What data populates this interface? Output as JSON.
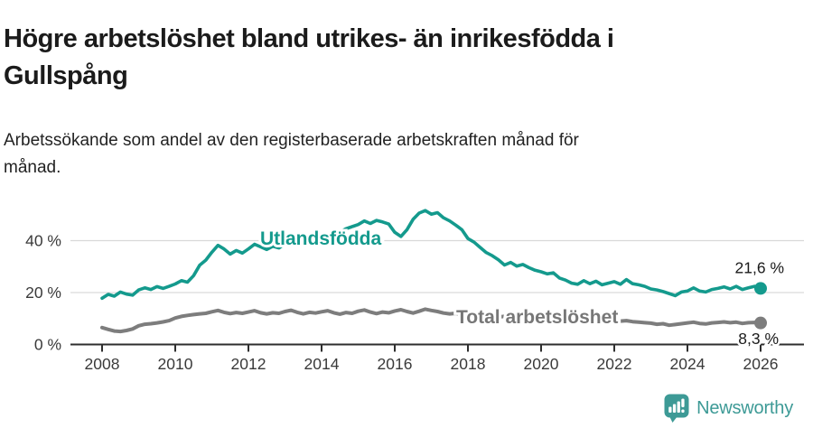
{
  "header": {
    "title_lines": [
      "Högre arbetslöshet bland utrikes- än inrikesfödda i",
      "Gullspång"
    ],
    "subtitle_lines": [
      "Arbetssökande som andel av den registerbaserade arbetskraften månad för",
      "månad."
    ]
  },
  "chart_data": {
    "type": "line",
    "title": "Högre arbetslöshet bland utrikes- än inrikesfödda i Gullspång",
    "subtitle": "Arbetssökande som andel av den registerbaserade arbetskraften månad för månad.",
    "grid": true,
    "legend_position": "inline-labels",
    "xlim": [
      2007.2,
      2027.2
    ],
    "ylim": [
      0,
      55
    ],
    "x_ticks": [
      2008,
      2010,
      2012,
      2014,
      2016,
      2018,
      2020,
      2022,
      2024,
      2026
    ],
    "y_ticks": [
      {
        "value": 0,
        "label": "0 %"
      },
      {
        "value": 20,
        "label": "20 %"
      },
      {
        "value": 40,
        "label": "40 %"
      }
    ],
    "x_start": 2008.0,
    "x_step_years": 0.166667,
    "series": [
      {
        "name": "Utlandsfödda",
        "color": "#149a8d",
        "end_label": "21,6 %",
        "end_value": 21.6,
        "values": [
          17.8,
          19.3,
          18.6,
          20.2,
          19.4,
          19.0,
          21.0,
          21.8,
          21.2,
          22.3,
          21.6,
          22.4,
          23.3,
          24.6,
          24.0,
          26.5,
          30.5,
          32.5,
          35.5,
          38.2,
          36.8,
          34.8,
          36.2,
          35.2,
          36.8,
          38.6,
          37.6,
          36.6,
          37.8,
          37.2,
          38.8,
          40.0,
          39.2,
          38.6,
          39.8,
          40.4,
          41.6,
          42.6,
          42.0,
          43.2,
          44.6,
          45.4,
          46.2,
          47.6,
          46.6,
          47.8,
          47.2,
          46.4,
          43.2,
          41.6,
          44.2,
          48.2,
          50.6,
          51.6,
          50.2,
          50.8,
          48.8,
          47.6,
          46.0,
          44.2,
          40.8,
          39.4,
          37.4,
          35.4,
          34.2,
          32.6,
          30.6,
          31.6,
          30.2,
          30.8,
          29.6,
          28.6,
          28.0,
          27.2,
          27.6,
          25.6,
          24.8,
          23.6,
          23.2,
          24.6,
          23.4,
          24.4,
          23.0,
          23.6,
          24.2,
          23.2,
          25.0,
          23.4,
          23.0,
          22.4,
          21.4,
          21.0,
          20.4,
          19.6,
          18.8,
          20.2,
          20.6,
          21.8,
          20.6,
          20.2,
          21.2,
          21.6,
          22.2,
          21.4,
          22.4,
          21.2,
          21.8,
          22.4,
          21.6
        ]
      },
      {
        "name": "Total arbetslöshet",
        "color": "#7d7d7d",
        "end_label": "8,3 %",
        "end_value": 8.3,
        "values": [
          6.5,
          5.8,
          5.2,
          5.0,
          5.4,
          6.0,
          7.2,
          7.8,
          8.0,
          8.3,
          8.7,
          9.2,
          10.2,
          10.8,
          11.2,
          11.5,
          11.8,
          12.0,
          12.6,
          13.1,
          12.4,
          11.9,
          12.3,
          12.0,
          12.5,
          13.0,
          12.2,
          11.8,
          12.2,
          12.0,
          12.7,
          13.2,
          12.4,
          11.8,
          12.4,
          12.1,
          12.6,
          13.0,
          12.2,
          11.7,
          12.3,
          12.0,
          12.8,
          13.3,
          12.5,
          11.9,
          12.5,
          12.2,
          12.9,
          13.4,
          12.7,
          12.1,
          12.8,
          13.6,
          13.1,
          12.7,
          12.1,
          11.8,
          12.0,
          11.6,
          11.4,
          11.2,
          10.9,
          10.7,
          10.9,
          10.6,
          10.8,
          10.5,
          10.3,
          10.1,
          10.3,
          10.0,
          10.4,
          10.6,
          10.8,
          10.5,
          10.2,
          9.9,
          9.8,
          9.6,
          9.4,
          9.2,
          9.4,
          9.1,
          9.3,
          9.0,
          9.2,
          8.8,
          8.6,
          8.4,
          8.2,
          7.8,
          8.0,
          7.4,
          7.7,
          8.0,
          8.3,
          8.6,
          8.1,
          7.9,
          8.3,
          8.5,
          8.7,
          8.4,
          8.6,
          8.1,
          8.4,
          8.5,
          8.3
        ]
      }
    ]
  },
  "footer": {
    "brand": "Newsworthy",
    "brand_color": "#3d9a96",
    "logo_icon": "bar-chart-speech-bubble-icon"
  },
  "colors": {
    "accent_teal": "#149a8d",
    "series_gray": "#7d7d7d",
    "gridline": "#d9d9d9",
    "axis": "#2e2e2e",
    "text": "#1b1b1b"
  }
}
